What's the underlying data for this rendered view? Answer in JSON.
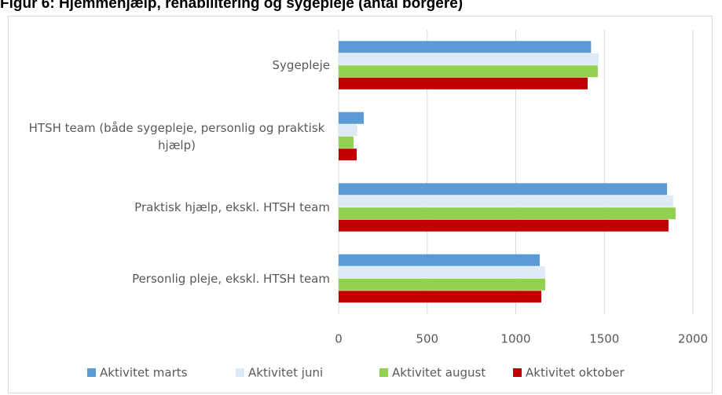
{
  "chart_data": {
    "type": "barh",
    "title": "Figur 6: Hjemmehjælp, rehabilitering og sygepleje (antal borgere)",
    "categories": [
      "Sygepleje",
      "HTSH team (både sygepleje, personlig og praktisk hjælp)",
      "Praktisk hjælp, ekskl. HTSH team",
      "Personlig pleje, ekskl. HTSH team"
    ],
    "series": [
      {
        "name": "Aktivitet marts",
        "color": "#5b9bd5",
        "values": [
          1425,
          142,
          1854,
          1135
        ]
      },
      {
        "name": "Aktivitet juni",
        "color": "#deebf7",
        "values": [
          1468,
          106,
          1889,
          1166
        ]
      },
      {
        "name": "Aktivitet august",
        "color": "#92d050",
        "values": [
          1463,
          84,
          1902,
          1166
        ]
      },
      {
        "name": "Aktivitet oktober",
        "color": "#c00000",
        "values": [
          1406,
          102,
          1862,
          1144
        ]
      }
    ],
    "xlim": [
      0,
      2000
    ],
    "xticks": [
      0,
      500,
      1000,
      1500,
      2000
    ],
    "grid": true,
    "legend": "bottom"
  }
}
